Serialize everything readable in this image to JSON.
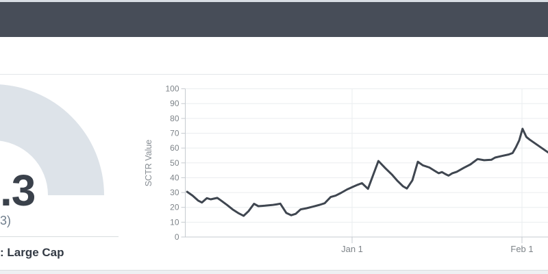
{
  "gauge": {
    "value_visible": ".3",
    "change_visible": "3)",
    "universe_visible": ": Large Cap",
    "arc_color": "#dde3e9"
  },
  "chart_data": {
    "type": "line",
    "title": "",
    "xlabel": "",
    "ylabel": "SCTR Value",
    "ylim": [
      0,
      100
    ],
    "grid": true,
    "legend": false,
    "line_color": "#3f4650",
    "y_ticks": [
      0,
      10,
      20,
      30,
      40,
      50,
      60,
      70,
      80,
      90,
      100
    ],
    "x_ticks": [
      {
        "label": "Jan 1",
        "day": 0
      },
      {
        "label": "Feb 1",
        "day": 31
      }
    ],
    "series": [
      {
        "name": "SCTR Value",
        "points": [
          [
            -30.1,
            30.5
          ],
          [
            -29.1,
            27.9
          ],
          [
            -28.1,
            24.6
          ],
          [
            -27.4,
            23.3
          ],
          [
            -26.5,
            26.2
          ],
          [
            -25.8,
            25.4
          ],
          [
            -24.6,
            26.4
          ],
          [
            -23.9,
            24.6
          ],
          [
            -22.8,
            21.6
          ],
          [
            -21.8,
            18.6
          ],
          [
            -20.8,
            16.2
          ],
          [
            -19.8,
            14.3
          ],
          [
            -18.9,
            17.4
          ],
          [
            -17.9,
            22.4
          ],
          [
            -17.1,
            20.8
          ],
          [
            -15.9,
            21.1
          ],
          [
            -14.6,
            21.6
          ],
          [
            -13.8,
            22.0
          ],
          [
            -13.1,
            22.5
          ],
          [
            -12.0,
            16.2
          ],
          [
            -11.1,
            14.7
          ],
          [
            -10.3,
            15.6
          ],
          [
            -9.4,
            18.6
          ],
          [
            -8.3,
            19.4
          ],
          [
            -7.1,
            20.5
          ],
          [
            -5.9,
            21.7
          ],
          [
            -5.0,
            22.8
          ],
          [
            -3.9,
            27.0
          ],
          [
            -3.0,
            27.9
          ],
          [
            -2.0,
            29.8
          ],
          [
            -0.9,
            32.1
          ],
          [
            0.0,
            33.6
          ],
          [
            1.0,
            35.2
          ],
          [
            1.8,
            36.3
          ],
          [
            2.9,
            32.5
          ],
          [
            4.8,
            51.3
          ],
          [
            6.1,
            46.3
          ],
          [
            7.3,
            42.0
          ],
          [
            8.3,
            37.8
          ],
          [
            9.3,
            34.2
          ],
          [
            10.0,
            32.7
          ],
          [
            11.0,
            38.2
          ],
          [
            12.0,
            50.8
          ],
          [
            12.9,
            48.4
          ],
          [
            14.1,
            46.9
          ],
          [
            15.1,
            44.6
          ],
          [
            15.8,
            43.0
          ],
          [
            16.4,
            43.8
          ],
          [
            17.0,
            42.5
          ],
          [
            17.6,
            41.4
          ],
          [
            18.3,
            43.0
          ],
          [
            19.1,
            44.0
          ],
          [
            20.4,
            46.7
          ],
          [
            21.6,
            49.0
          ],
          [
            22.9,
            52.6
          ],
          [
            24.1,
            51.8
          ],
          [
            25.4,
            52.1
          ],
          [
            26.1,
            53.6
          ],
          [
            27.4,
            54.7
          ],
          [
            28.6,
            55.7
          ],
          [
            29.3,
            56.7
          ],
          [
            29.9,
            60.6
          ],
          [
            30.5,
            65.2
          ],
          [
            31.1,
            73.0
          ],
          [
            31.8,
            67.5
          ],
          [
            32.4,
            65.7
          ],
          [
            35.8,
            57.0
          ]
        ]
      }
    ]
  },
  "colors": {
    "header_bar": "#474d58",
    "top_strip": "#d9dee4",
    "divider": "#e3e6e9",
    "gridline": "#eaedef",
    "axis_line": "#c6cbd0",
    "tick_text": "#7d8388",
    "axis_title_text": "#878d93",
    "value_text": "#3a414b",
    "muted_text": "#6f7d8c",
    "universe_text": "#333a44",
    "bottom_band": "#eef0f2"
  }
}
